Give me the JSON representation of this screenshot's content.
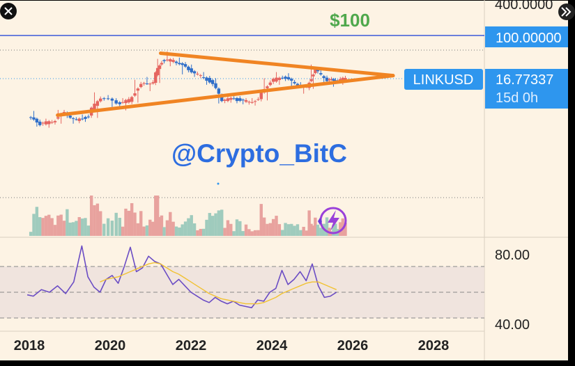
{
  "colors": {
    "background": "#fdf3e4",
    "frame": "#000000",
    "bull": "#e5645f",
    "bear": "#2f6ec9",
    "vol_up": "#e8a29e",
    "vol_down": "#9fcbbd",
    "triangle": "#f08423",
    "target_line": "#3b59d9",
    "target_text": "#4fa84c",
    "watermark": "#2d6de0",
    "rsi": "#6a4cc4",
    "rsi_ma": "#f1c232",
    "rsi_band": "#ece0dc",
    "axis_badge": "#2e96ee",
    "grid_dots": "#7a7a7a"
  },
  "icons": {
    "close": "close-icon",
    "expand": "double-chevron-right-icon",
    "flash": "lightning-bolt-icon"
  },
  "labels": {
    "target": "$100",
    "watermark": "@Crypto_BitC",
    "symbol": "LINKUSD",
    "price": "16.77337",
    "countdown": "15d 0h",
    "price_axis_top": "400.0000",
    "target_axis": "100.00000"
  },
  "chart_data": [
    {
      "type": "candlestick",
      "symbol": "LINKUSD",
      "interval": "2W",
      "y_scale": "log",
      "x_ticks": [
        "2018",
        "2020",
        "2022",
        "2024",
        "2026",
        "2028"
      ],
      "x_range": [
        2017.75,
        2029.0
      ],
      "y_ticks": [
        400,
        100
      ],
      "last_price": 16.77337,
      "target_price": 100,
      "trendlines": [
        {
          "name": "upper",
          "from": {
            "x": 2021.25,
            "y": 48
          },
          "to": {
            "x": 2027.0,
            "y": 19
          }
        },
        {
          "name": "lower",
          "from": {
            "x": 2018.7,
            "y": 3.7
          },
          "to": {
            "x": 2027.0,
            "y": 19
          }
        }
      ],
      "ohlc": [
        {
          "x": 2018.0,
          "o": 3.4,
          "h": 4.4,
          "l": 2.3,
          "c": 2.6
        },
        {
          "x": 2018.3,
          "o": 2.6,
          "h": 3.2,
          "l": 2.2,
          "c": 2.8
        },
        {
          "x": 2018.6,
          "o": 2.8,
          "h": 4.6,
          "l": 2.6,
          "c": 4.0
        },
        {
          "x": 2018.9,
          "o": 4.0,
          "h": 4.2,
          "l": 2.6,
          "c": 3.0
        },
        {
          "x": 2019.2,
          "o": 3.0,
          "h": 3.8,
          "l": 2.8,
          "c": 3.5
        },
        {
          "x": 2019.5,
          "o": 3.5,
          "h": 9.5,
          "l": 3.3,
          "c": 7.8
        },
        {
          "x": 2019.8,
          "o": 7.8,
          "h": 8.5,
          "l": 5.2,
          "c": 6.0
        },
        {
          "x": 2020.2,
          "o": 6.0,
          "h": 7.5,
          "l": 4.5,
          "c": 6.8
        },
        {
          "x": 2020.5,
          "o": 6.8,
          "h": 16.0,
          "l": 6.2,
          "c": 13.0
        },
        {
          "x": 2020.8,
          "o": 13.0,
          "h": 18.0,
          "l": 10.0,
          "c": 15.0
        },
        {
          "x": 2021.1,
          "o": 15.0,
          "h": 38.0,
          "l": 14.0,
          "c": 34.0
        },
        {
          "x": 2021.3,
          "o": 34.0,
          "h": 52.0,
          "l": 28.0,
          "c": 36.0
        },
        {
          "x": 2021.6,
          "o": 36.0,
          "h": 40.0,
          "l": 20.0,
          "c": 26.0
        },
        {
          "x": 2021.9,
          "o": 26.0,
          "h": 30.0,
          "l": 18.0,
          "c": 20.0
        },
        {
          "x": 2022.2,
          "o": 20.0,
          "h": 22.0,
          "l": 13.0,
          "c": 15.0
        },
        {
          "x": 2022.5,
          "o": 15.0,
          "h": 17.0,
          "l": 6.0,
          "c": 7.0
        },
        {
          "x": 2022.8,
          "o": 7.0,
          "h": 9.0,
          "l": 6.2,
          "c": 7.2
        },
        {
          "x": 2023.1,
          "o": 7.2,
          "h": 8.0,
          "l": 5.8,
          "c": 6.5
        },
        {
          "x": 2023.4,
          "o": 6.5,
          "h": 7.5,
          "l": 5.5,
          "c": 7.0
        },
        {
          "x": 2023.7,
          "o": 7.0,
          "h": 17.0,
          "l": 6.8,
          "c": 15.0
        },
        {
          "x": 2024.0,
          "o": 15.0,
          "h": 22.0,
          "l": 13.0,
          "c": 18.0
        },
        {
          "x": 2024.3,
          "o": 18.0,
          "h": 21.0,
          "l": 12.0,
          "c": 13.5
        },
        {
          "x": 2024.6,
          "o": 13.5,
          "h": 14.5,
          "l": 9.0,
          "c": 11.5
        },
        {
          "x": 2024.9,
          "o": 11.5,
          "h": 30.0,
          "l": 11.0,
          "c": 24.0
        },
        {
          "x": 2025.1,
          "o": 24.0,
          "h": 27.0,
          "l": 14.0,
          "c": 16.0
        },
        {
          "x": 2025.4,
          "o": 16.0,
          "h": 18.0,
          "l": 12.0,
          "c": 15.0
        },
        {
          "x": 2025.6,
          "o": 15.0,
          "h": 17.5,
          "l": 13.0,
          "c": 16.77337
        }
      ]
    },
    {
      "type": "line",
      "name_hidden": true,
      "y_ticks": [
        80,
        40
      ],
      "bands": [
        30,
        50,
        70
      ],
      "x": [
        2017.95,
        2018.1,
        2018.3,
        2018.5,
        2018.7,
        2018.9,
        2019.1,
        2019.3,
        2019.45,
        2019.6,
        2019.75,
        2019.9,
        2020.05,
        2020.2,
        2020.35,
        2020.5,
        2020.65,
        2020.8,
        2020.95,
        2021.1,
        2021.25,
        2021.4,
        2021.55,
        2021.7,
        2021.85,
        2022.0,
        2022.15,
        2022.3,
        2022.45,
        2022.6,
        2022.75,
        2022.9,
        2023.05,
        2023.2,
        2023.35,
        2023.5,
        2023.65,
        2023.8,
        2023.95,
        2024.1,
        2024.25,
        2024.4,
        2024.55,
        2024.7,
        2024.85,
        2025.0,
        2025.15,
        2025.3,
        2025.45,
        2025.6
      ],
      "series": [
        {
          "values": [
            48,
            47,
            52,
            50,
            55,
            49,
            58,
            86,
            62,
            54,
            50,
            60,
            63,
            57,
            70,
            85,
            66,
            69,
            78,
            74,
            72,
            64,
            56,
            60,
            55,
            50,
            47,
            44,
            42,
            46,
            43,
            41,
            43,
            40,
            39,
            38,
            44,
            43,
            50,
            53,
            67,
            56,
            60,
            66,
            59,
            72,
            55,
            46,
            47,
            50
          ]
        },
        {
          "values": [
            null,
            null,
            null,
            null,
            null,
            null,
            null,
            null,
            null,
            null,
            58,
            60,
            61,
            62,
            64,
            66,
            68,
            70,
            72,
            73,
            72,
            69,
            66,
            64,
            61,
            58,
            55,
            52,
            49,
            47,
            45,
            44,
            43,
            42,
            41,
            41,
            41,
            42,
            44,
            46,
            49,
            51,
            53,
            55,
            57,
            58,
            58,
            56,
            54,
            52
          ]
        }
      ]
    }
  ]
}
